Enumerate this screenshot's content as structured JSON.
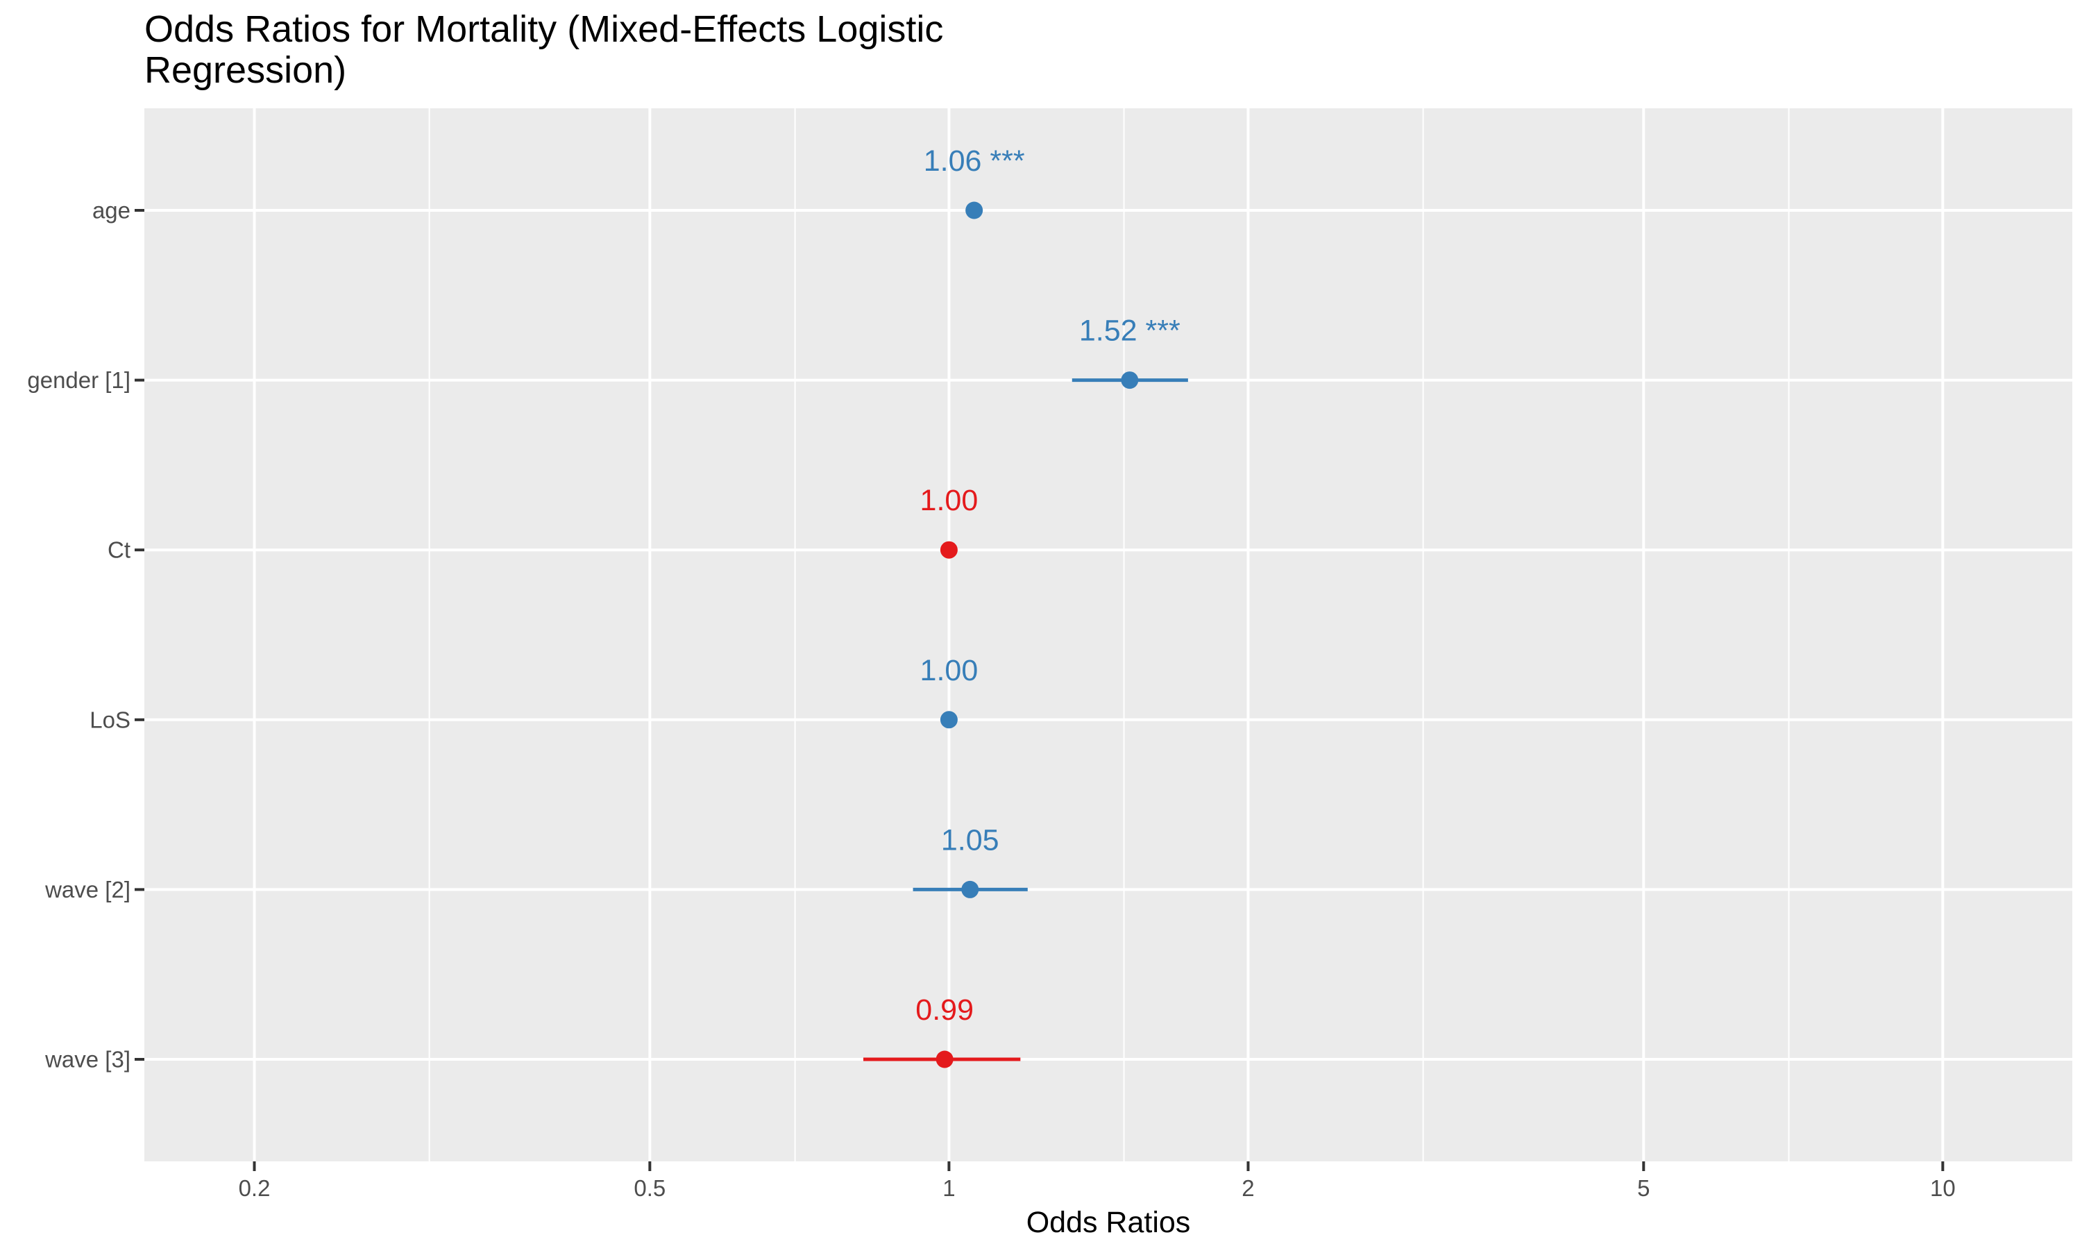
{
  "chart_data": {
    "type": "scatter",
    "subtype": "forest-plot",
    "title_lines": [
      "Odds Ratios for Mortality (Mixed-Effects Logistic",
      "Regression)"
    ],
    "xlabel": "Odds Ratios",
    "ylabel": "",
    "x_scale": "log10",
    "xlim": [
      0.155,
      13.5
    ],
    "x_ticks": [
      {
        "value": 0.2,
        "label": "0.2"
      },
      {
        "value": 0.5,
        "label": "0.5"
      },
      {
        "value": 1,
        "label": "1"
      },
      {
        "value": 2,
        "label": "2"
      },
      {
        "value": 5,
        "label": "5"
      },
      {
        "value": 10,
        "label": "10"
      }
    ],
    "x_minor_gridlines": [
      0.3,
      0.7,
      1.5,
      3,
      7
    ],
    "grid": true,
    "legend": "none",
    "colors": {
      "positive": "#377eb8",
      "negative": "#e41a1c",
      "panel_background": "#ebebeb",
      "gridline": "#ffffff"
    },
    "terms": [
      {
        "term": "age",
        "estimate": 1.06,
        "ci_low": 1.06,
        "ci_high": 1.06,
        "label": "1.06 ***",
        "color": "#377eb8"
      },
      {
        "term": "gender [1]",
        "estimate": 1.52,
        "ci_low": 1.33,
        "ci_high": 1.74,
        "label": "1.52 ***",
        "color": "#377eb8"
      },
      {
        "term": "Ct",
        "estimate": 1.0,
        "ci_low": 1.0,
        "ci_high": 1.0,
        "label": "1.00",
        "color": "#e41a1c"
      },
      {
        "term": "LoS",
        "estimate": 1.0,
        "ci_low": 1.0,
        "ci_high": 1.0,
        "label": "1.00",
        "color": "#377eb8"
      },
      {
        "term": "wave [2]",
        "estimate": 1.05,
        "ci_low": 0.92,
        "ci_high": 1.2,
        "label": "1.05",
        "color": "#377eb8"
      },
      {
        "term": "wave [3]",
        "estimate": 0.99,
        "ci_low": 0.82,
        "ci_high": 1.18,
        "label": "0.99",
        "color": "#e41a1c"
      }
    ]
  }
}
